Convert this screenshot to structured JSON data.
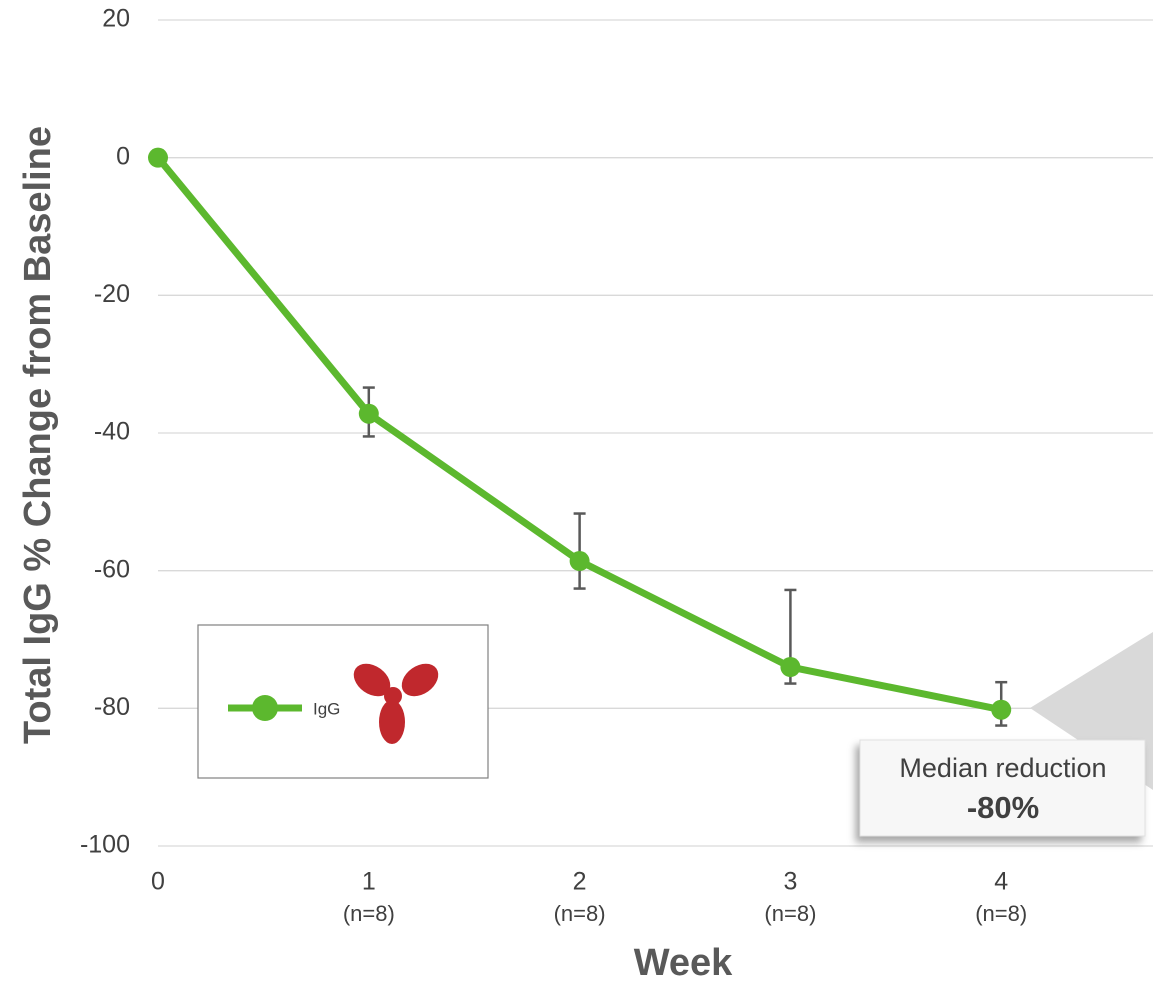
{
  "chart_data": {
    "type": "line",
    "x": [
      0,
      1,
      2,
      3,
      4
    ],
    "x_sublabels": [
      null,
      "(n=8)",
      "(n=8)",
      "(n=8)",
      "(n=8)"
    ],
    "series": [
      {
        "name": "IgG",
        "color": "#5cb82e",
        "values": [
          0,
          -37.2,
          -58.6,
          -74.0,
          -80.2
        ],
        "error_upper": [
          null,
          -33.4,
          -51.7,
          -62.8,
          -76.2
        ],
        "error_lower": [
          null,
          -40.5,
          -62.6,
          -76.4,
          -82.5
        ]
      }
    ],
    "xlim": [
      0,
      4.72
    ],
    "xticks": [
      0,
      1,
      2,
      3,
      4
    ],
    "ylim": [
      -100,
      20
    ],
    "yticks": [
      20,
      0,
      -20,
      -40,
      -60,
      -80,
      -100
    ],
    "grid": true,
    "y_label": "Total IgG % Change from Baseline",
    "x_label": "Week",
    "annotation": {
      "text": "Median reduction",
      "highlight": "-80%"
    }
  }
}
